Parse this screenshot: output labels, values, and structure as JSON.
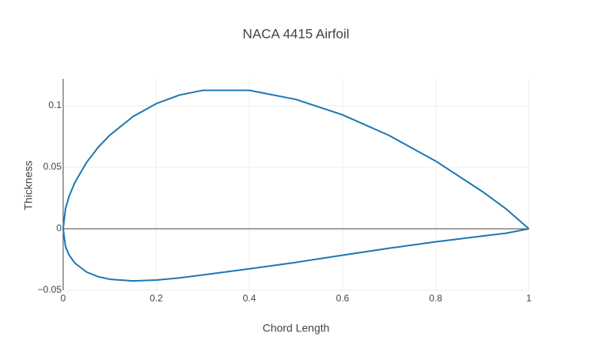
{
  "chart_data": {
    "type": "line",
    "title": "NACA 4415 Airfoil",
    "x_label": "Chord Length",
    "y_label": "Thickness",
    "x": [
      1.0,
      0.95,
      0.9,
      0.8,
      0.7,
      0.6,
      0.5,
      0.4,
      0.3,
      0.25,
      0.2,
      0.15,
      0.1,
      0.075,
      0.05,
      0.025,
      0.0125,
      0.005,
      0,
      0.005,
      0.0125,
      0.025,
      0.05,
      0.075,
      0.1,
      0.15,
      0.2,
      0.25,
      0.3,
      0.4,
      0.5,
      0.6,
      0.7,
      0.8,
      0.9,
      0.95,
      1.0
    ],
    "values": [
      0,
      0.0165,
      0.0303,
      0.055,
      0.0758,
      0.0926,
      0.1051,
      0.1125,
      0.1125,
      0.1087,
      0.1017,
      0.0912,
      0.076,
      0.0661,
      0.0538,
      0.0375,
      0.0261,
      0.0163,
      0,
      -0.0143,
      -0.0212,
      -0.0278,
      -0.0351,
      -0.0389,
      -0.041,
      -0.0424,
      -0.0417,
      -0.0399,
      -0.0375,
      -0.0325,
      -0.0273,
      -0.0215,
      -0.0158,
      -0.0106,
      -0.0059,
      -0.0037,
      0
    ],
    "color": "#1f77b4",
    "xlim": [
      0,
      1
    ],
    "xticks": [
      0,
      0.2,
      0.4,
      0.6,
      0.8,
      1
    ],
    "ylim": [
      -0.05,
      0.1218
    ],
    "yticks": [
      {
        "value": -0.05,
        "label": "−0.05"
      },
      0,
      0.05,
      0.1
    ],
    "grid": true
  }
}
